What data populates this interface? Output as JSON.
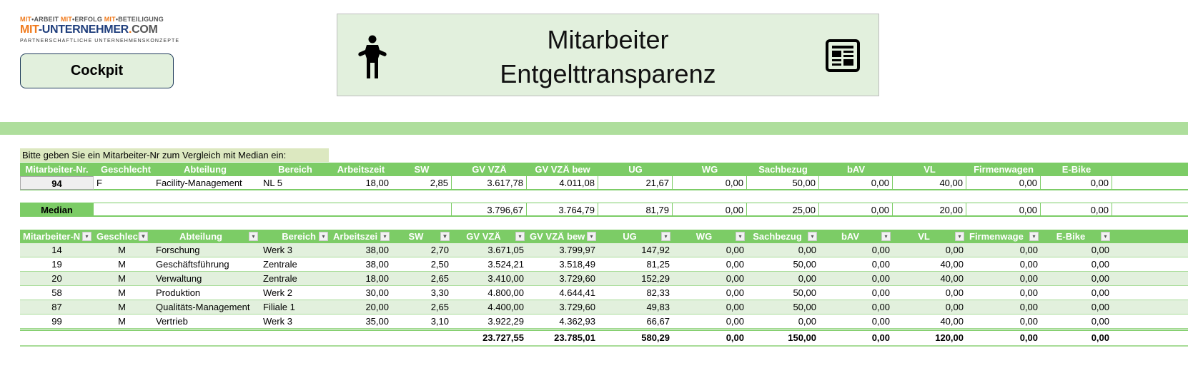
{
  "logo": {
    "line1": [
      {
        "t": "MIT",
        "o": true
      },
      {
        "t": "•ARBEIT ",
        "o": false
      },
      {
        "t": "MIT",
        "o": true
      },
      {
        "t": "•ERFOLG ",
        "o": false
      },
      {
        "t": "MIT",
        "o": true
      },
      {
        "t": "•BETEILIGUNG",
        "o": false
      }
    ],
    "line1_text": "MIT•ARBEIT MIT•ERFOLG MIT•BETEILIGUNG",
    "line2_a": "MIT",
    "line2_b": "-UNTERNEHMER",
    "line2_c": ".",
    "line2_d": "COM",
    "line3": "PARTNERSCHAFTLICHE UNTERNEHMENSKONZEPTE"
  },
  "cockpit_button": "Cockpit",
  "title": {
    "line1": "Mitarbeiter",
    "line2": "Entgelttransparenz",
    "left_icon": "person-shrug-icon",
    "right_icon": "newspaper-icon"
  },
  "colors": {
    "header_green": "#7ccc66",
    "band_green": "#aede9c",
    "light_green": "#e2f0dd",
    "prompt_bg": "#dce8c0"
  },
  "prompt": "Bitte geben Sie ein Mitarbeiter-Nr zum Vergleich mit Median ein:",
  "columns": [
    "Mitarbeiter-Nr.",
    "Geschlecht",
    "Abteilung",
    "Bereich",
    "Arbeitszeit",
    "SW",
    "GV VZÄ",
    "GV VZÄ bew",
    "UG",
    "WG",
    "Sachbezug",
    "bAV",
    "VL",
    "Firmenwagen",
    "E-Bike"
  ],
  "lookup": {
    "values": [
      "94",
      "F",
      "Facility-Management",
      "NL 5",
      "18,00",
      "2,85",
      "3.617,78",
      "4.011,08",
      "21,67",
      "0,00",
      "50,00",
      "0,00",
      "40,00",
      "0,00",
      "0,00"
    ]
  },
  "median": {
    "label": "Median",
    "values": [
      "3.796,67",
      "3.764,79",
      "81,79",
      "0,00",
      "25,00",
      "0,00",
      "20,00",
      "0,00",
      "0,00"
    ]
  },
  "table": {
    "headers": [
      "Mitarbeiter-N",
      "Geschlech",
      "Abteilung",
      "Bereich",
      "Arbeitszei",
      "SW",
      "GV VZÄ",
      "GV VZÄ bew",
      "UG",
      "WG",
      "Sachbezug",
      "bAV",
      "VL",
      "Firmenwage",
      "E-Bike"
    ],
    "filter_states": [
      "sorted-asc",
      "filtered",
      "none",
      "none",
      "none",
      "filtered",
      "none",
      "none",
      "none",
      "none",
      "none",
      "none",
      "none",
      "none",
      "none"
    ],
    "rows": [
      [
        "14",
        "M",
        "Forschung",
        "Werk 3",
        "38,00",
        "2,70",
        "3.671,05",
        "3.799,97",
        "147,92",
        "0,00",
        "0,00",
        "0,00",
        "0,00",
        "0,00",
        "0,00"
      ],
      [
        "19",
        "M",
        "Geschäftsführung",
        "Zentrale",
        "38,00",
        "2,50",
        "3.524,21",
        "3.518,49",
        "81,25",
        "0,00",
        "50,00",
        "0,00",
        "40,00",
        "0,00",
        "0,00"
      ],
      [
        "20",
        "M",
        "Verwaltung",
        "Zentrale",
        "18,00",
        "2,65",
        "3.410,00",
        "3.729,60",
        "152,29",
        "0,00",
        "0,00",
        "0,00",
        "40,00",
        "0,00",
        "0,00"
      ],
      [
        "58",
        "M",
        "Produktion",
        "Werk 2",
        "30,00",
        "3,30",
        "4.800,00",
        "4.644,41",
        "82,33",
        "0,00",
        "50,00",
        "0,00",
        "0,00",
        "0,00",
        "0,00"
      ],
      [
        "87",
        "M",
        "Qualitäts-Management",
        "Filiale 1",
        "20,00",
        "2,65",
        "4.400,00",
        "3.729,60",
        "49,83",
        "0,00",
        "50,00",
        "0,00",
        "0,00",
        "0,00",
        "0,00"
      ],
      [
        "99",
        "M",
        "Vertrieb",
        "Werk 3",
        "35,00",
        "3,10",
        "3.922,29",
        "4.362,93",
        "66,67",
        "0,00",
        "0,00",
        "0,00",
        "40,00",
        "0,00",
        "0,00"
      ]
    ],
    "totals": [
      "23.727,55",
      "23.785,01",
      "580,29",
      "0,00",
      "150,00",
      "0,00",
      "120,00",
      "0,00",
      "0,00"
    ]
  }
}
